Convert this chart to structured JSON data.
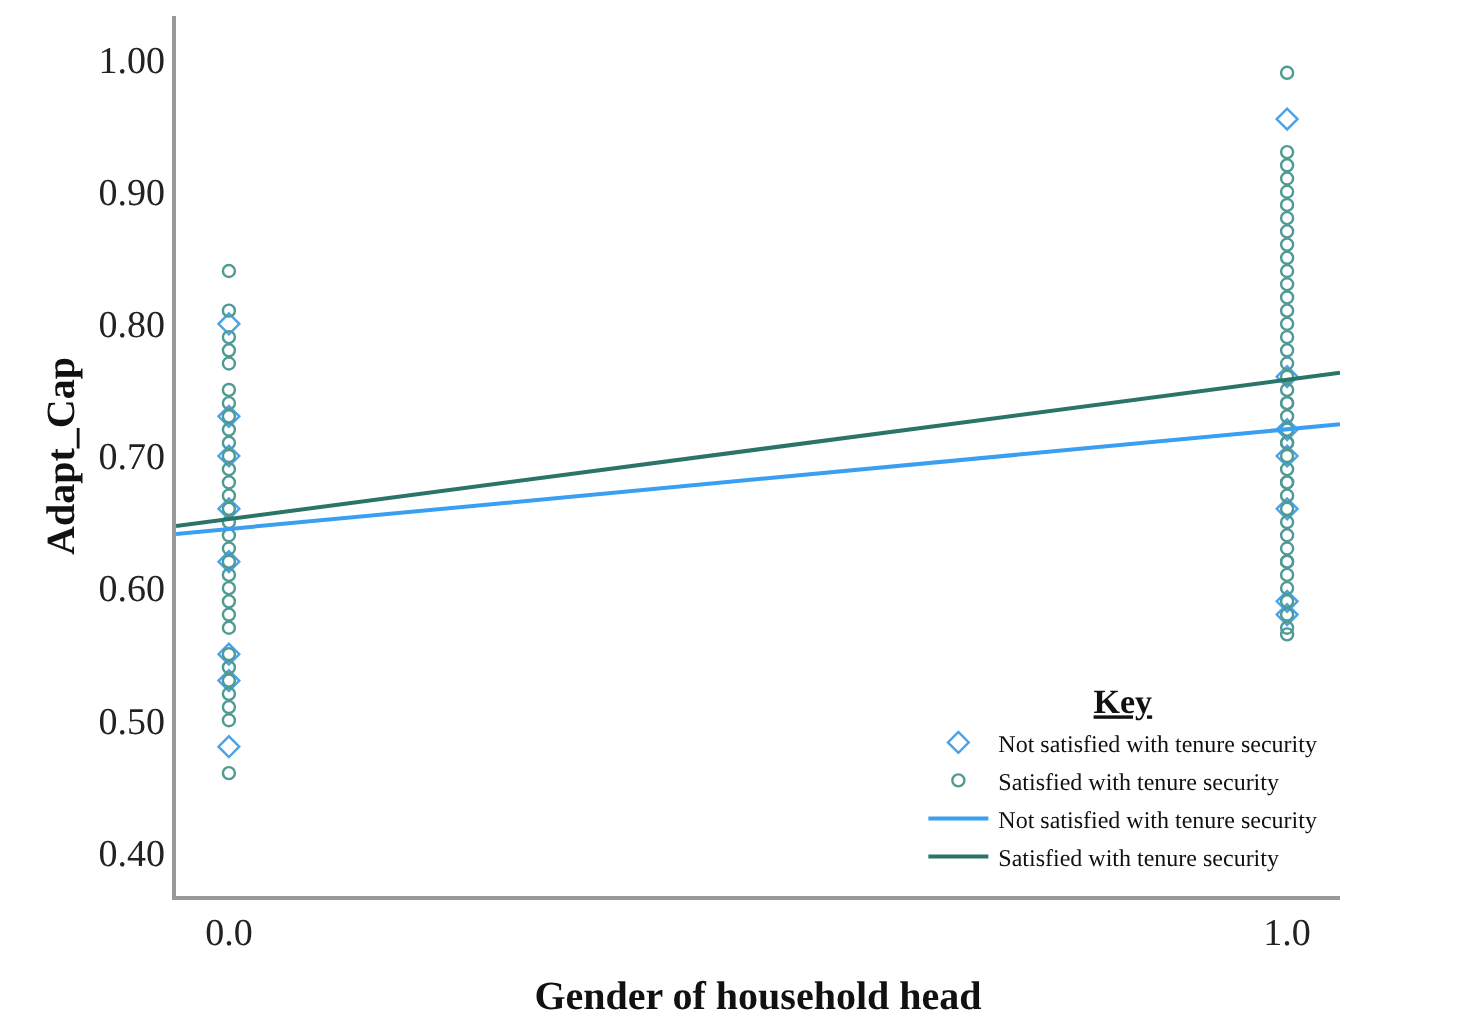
{
  "chart_data": {
    "type": "scatter",
    "xlabel": "Gender of household head",
    "ylabel": "Adapt_Cap",
    "legend_title": "Key",
    "legend": "bottom right",
    "grid": false,
    "xlim": [
      -0.05,
      1.05
    ],
    "xticks": [
      {
        "value": 0,
        "label": "0.0"
      },
      {
        "value": 1,
        "label": "1.0"
      }
    ],
    "ylim": [
      0.367,
      1.033
    ],
    "yticks": [
      {
        "value": 0.4,
        "label": "0.40"
      },
      {
        "value": 0.5,
        "label": "0.50"
      },
      {
        "value": 0.6,
        "label": "0.60"
      },
      {
        "value": 0.7,
        "label": "0.70"
      },
      {
        "value": 0.8,
        "label": "0.80"
      },
      {
        "value": 0.9,
        "label": "0.90"
      },
      {
        "value": 1.0,
        "label": "1.00"
      }
    ],
    "series": [
      {
        "name": "Not satisfied with tenure security",
        "marker": "diamond",
        "color": "#4aa3e8",
        "x": [
          0,
          0,
          0,
          0,
          0,
          0,
          0,
          0,
          1,
          1,
          1,
          1,
          1,
          1,
          1
        ],
        "values": [
          0.8,
          0.73,
          0.7,
          0.66,
          0.62,
          0.55,
          0.53,
          0.48,
          0.955,
          0.76,
          0.72,
          0.7,
          0.66,
          0.59,
          0.58
        ]
      },
      {
        "name": "Satisfied with tenure security",
        "marker": "circle",
        "color": "#4f9a94",
        "x": [
          0,
          0,
          0,
          0,
          0,
          0,
          0,
          0,
          0,
          0,
          0,
          0,
          0,
          0,
          0,
          0,
          0,
          0,
          0,
          0,
          0,
          0,
          0,
          0,
          0,
          0,
          0,
          0,
          0,
          0,
          0,
          1,
          1,
          1,
          1,
          1,
          1,
          1,
          1,
          1,
          1,
          1,
          1,
          1,
          1,
          1,
          1,
          1,
          1,
          1,
          1,
          1,
          1,
          1,
          1,
          1,
          1,
          1,
          1,
          1,
          1,
          1,
          1,
          1,
          1,
          1,
          1,
          1,
          1,
          1,
          1,
          1,
          1,
          1
        ],
        "values": [
          0.84,
          0.81,
          0.79,
          0.78,
          0.77,
          0.75,
          0.74,
          0.73,
          0.72,
          0.71,
          0.7,
          0.69,
          0.68,
          0.67,
          0.66,
          0.65,
          0.64,
          0.63,
          0.62,
          0.61,
          0.6,
          0.59,
          0.58,
          0.57,
          0.55,
          0.54,
          0.53,
          0.52,
          0.51,
          0.5,
          0.46,
          0.99,
          0.93,
          0.92,
          0.91,
          0.9,
          0.89,
          0.88,
          0.87,
          0.86,
          0.85,
          0.84,
          0.83,
          0.82,
          0.81,
          0.8,
          0.79,
          0.78,
          0.77,
          0.76,
          0.75,
          0.74,
          0.73,
          0.72,
          0.71,
          0.7,
          0.69,
          0.68,
          0.67,
          0.66,
          0.65,
          0.64,
          0.63,
          0.62,
          0.61,
          0.6,
          0.59,
          0.58,
          0.57,
          0.565,
          0.62,
          0.74,
          0.68,
          0.71
        ]
      },
      {
        "name": "Not satisfied with tenure security",
        "type": "line",
        "marker": "none",
        "line_style": "solid",
        "color": "#3a9ff0",
        "x": [
          -0.05,
          1.05
        ],
        "values": [
          0.641,
          0.724
        ]
      },
      {
        "name": "Satisfied with tenure security",
        "type": "line",
        "marker": "none",
        "line_style": "solid",
        "color": "#2a7568",
        "x": [
          -0.05,
          1.05
        ],
        "values": [
          0.647,
          0.763
        ]
      }
    ]
  }
}
